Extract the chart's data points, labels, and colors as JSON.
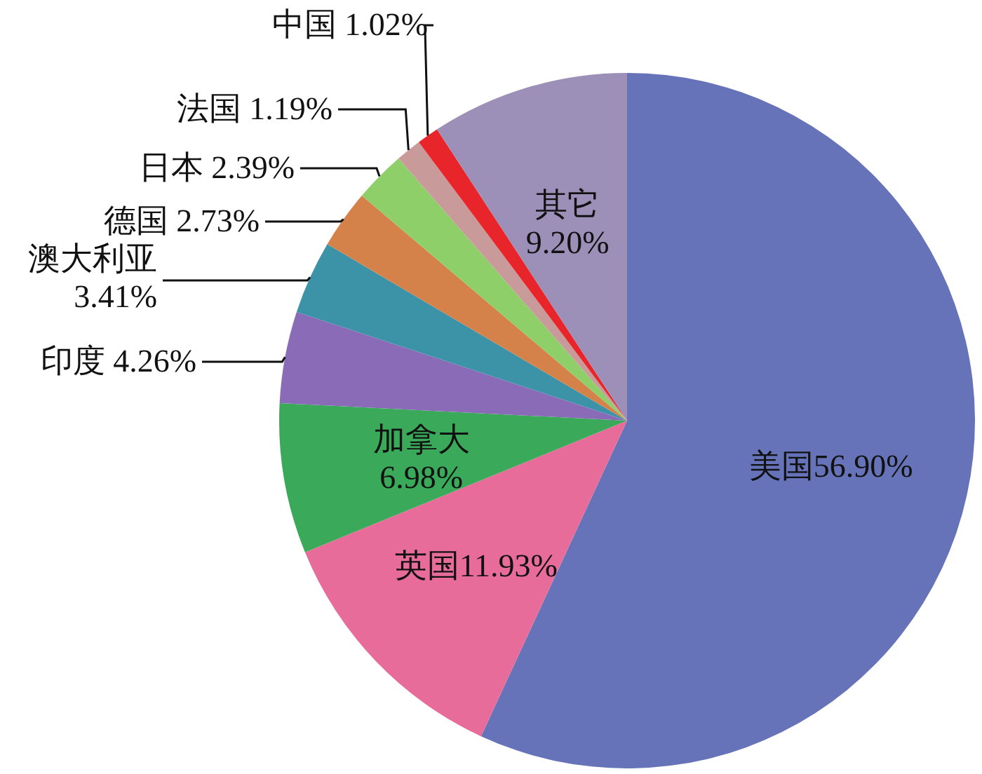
{
  "chart_data": {
    "type": "pie",
    "categories": [
      "美国",
      "英国",
      "加拿大",
      "印度",
      "澳大利亚",
      "德国",
      "日本",
      "法国",
      "中国",
      "其它"
    ],
    "values": [
      56.9,
      11.93,
      6.98,
      4.26,
      3.41,
      2.73,
      2.39,
      1.19,
      1.02,
      9.2
    ],
    "colors": [
      "#6673b8",
      "#e86c9a",
      "#3aaa5a",
      "#8a6bb8",
      "#3c93a8",
      "#d5824a",
      "#8fcf6a",
      "#c89a9a",
      "#e8252a",
      "#9c8fb8"
    ],
    "value_labels": [
      "56.90%",
      "11.93%",
      "6.98%",
      "4.26%",
      "3.41%",
      "2.73%",
      "2.39%",
      "1.19%",
      "1.02%",
      "9.20%"
    ]
  }
}
